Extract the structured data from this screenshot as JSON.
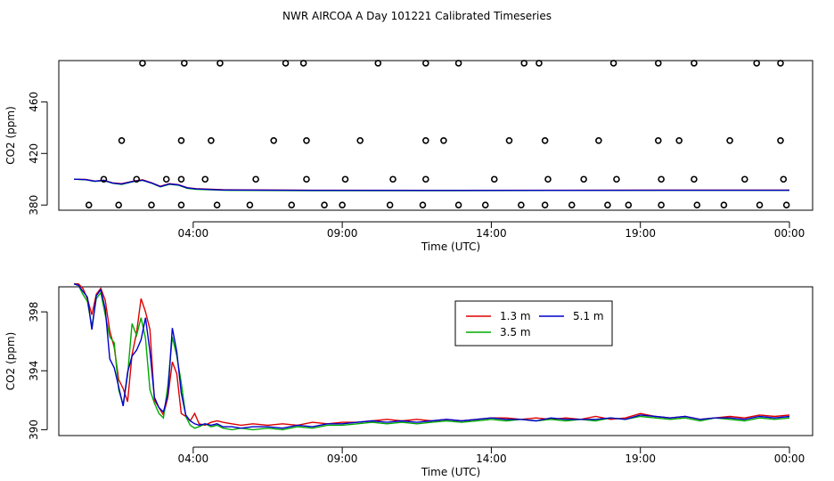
{
  "title": "NWR AIRCOA A  Day 101221  Calibrated Timeseries",
  "colors": {
    "s13": "#dd0000",
    "s35": "#00aa00",
    "s51": "#0000cc",
    "frame": "#000000"
  },
  "chart_data": [
    {
      "type": "scatter+line",
      "xlabel": "Time (UTC)",
      "ylabel": "CO2 (ppm)",
      "xlim": [
        0.0,
        24.0
      ],
      "ylim": [
        376,
        492
      ],
      "xticks": [
        {
          "v": 4,
          "label": "04:00"
        },
        {
          "v": 9,
          "label": "09:00"
        },
        {
          "v": 14,
          "label": "14:00"
        },
        {
          "v": 19,
          "label": "19:00"
        },
        {
          "v": 24,
          "label": "00:00"
        }
      ],
      "yticks": [
        {
          "v": 380,
          "label": "380"
        },
        {
          "v": 420,
          "label": "420"
        },
        {
          "v": 460,
          "label": "460"
        }
      ],
      "calibration_points": {
        "x": [
          0.5,
          1.5,
          2.6,
          3.6,
          4.8,
          5.9,
          7.3,
          8.4,
          9.0,
          10.6,
          11.7,
          12.9,
          13.8,
          15.0,
          15.8,
          16.7,
          17.9,
          18.6,
          19.7,
          20.9,
          21.8,
          23.0,
          23.9,
          1.0,
          2.1,
          3.1,
          3.6,
          4.4,
          6.1,
          7.8,
          9.1,
          10.7,
          11.8,
          14.1,
          15.9,
          17.1,
          18.2,
          19.7,
          20.8,
          22.5,
          23.8,
          1.6,
          3.6,
          4.6,
          6.7,
          7.8,
          9.6,
          11.8,
          12.4,
          14.6,
          15.8,
          17.6,
          19.6,
          20.3,
          22.0,
          23.7,
          2.3,
          3.7,
          4.9,
          7.1,
          7.7,
          10.2,
          11.8,
          12.9,
          15.1,
          15.6,
          18.1,
          19.6,
          20.8,
          22.9,
          23.7
        ],
        "y": [
          380,
          380,
          380,
          380,
          380,
          380,
          380,
          380,
          380,
          380,
          380,
          380,
          380,
          380,
          380,
          380,
          380,
          380,
          380,
          380,
          380,
          380,
          380,
          400,
          400,
          400,
          400,
          400,
          400,
          400,
          400,
          400,
          400,
          400,
          400,
          400,
          400,
          400,
          400,
          400,
          400,
          430,
          430,
          430,
          430,
          430,
          430,
          430,
          430,
          430,
          430,
          430,
          430,
          430,
          430,
          430,
          490,
          490,
          490,
          490,
          490,
          490,
          490,
          490,
          490,
          490,
          490,
          490,
          490,
          490,
          490
        ]
      },
      "series": [
        {
          "name": "1.3 m",
          "color": "#dd0000",
          "x": [
            0.0,
            0.4,
            0.7,
            1.0,
            1.3,
            1.6,
            2.0,
            2.3,
            2.6,
            2.9,
            3.2,
            3.5,
            3.8,
            4.1,
            5.0,
            8.0,
            12.0,
            16.0,
            20.0,
            24.0
          ],
          "y": [
            400,
            399.8,
            398.6,
            399.2,
            397.2,
            396.6,
            398.6,
            399.6,
            397.3,
            394.6,
            396.6,
            395.8,
            393.5,
            392.7,
            391.9,
            391.5,
            391.4,
            391.5,
            391.6,
            391.6
          ]
        },
        {
          "name": "3.5 m",
          "color": "#00aa00",
          "x": [
            0.0,
            0.4,
            0.7,
            1.0,
            1.3,
            1.6,
            2.0,
            2.3,
            2.6,
            2.9,
            3.2,
            3.5,
            3.8,
            4.1,
            5.0,
            8.0,
            12.0,
            16.0,
            20.0,
            24.0
          ],
          "y": [
            400,
            399.6,
            398.3,
            399.0,
            396.9,
            396.0,
            398.2,
            399.1,
            397.0,
            394.1,
            396.1,
            395.4,
            393.0,
            392.2,
            391.5,
            391.2,
            391.1,
            391.3,
            391.4,
            391.4
          ]
        },
        {
          "name": "5.1 m",
          "color": "#0000cc",
          "x": [
            0.0,
            0.4,
            0.7,
            1.0,
            1.3,
            1.6,
            2.0,
            2.3,
            2.6,
            2.9,
            3.2,
            3.5,
            3.8,
            4.1,
            5.0,
            8.0,
            12.0,
            16.0,
            20.0,
            24.0
          ],
          "y": [
            400,
            399.7,
            398.5,
            399.1,
            397.0,
            396.3,
            398.4,
            399.3,
            397.1,
            394.3,
            396.4,
            395.6,
            393.3,
            392.5,
            391.7,
            391.4,
            391.3,
            391.4,
            391.5,
            391.5
          ]
        }
      ]
    },
    {
      "type": "line",
      "xlabel": "Time (UTC)",
      "ylabel": "CO2 (ppm)",
      "xlim": [
        0.0,
        24.0
      ],
      "ylim": [
        389.6,
        399.7
      ],
      "xticks": [
        {
          "v": 4,
          "label": "04:00"
        },
        {
          "v": 9,
          "label": "09:00"
        },
        {
          "v": 14,
          "label": "14:00"
        },
        {
          "v": 19,
          "label": "19:00"
        },
        {
          "v": 24,
          "label": "00:00"
        }
      ],
      "yticks": [
        {
          "v": 390,
          "label": "390"
        },
        {
          "v": 394,
          "label": "394"
        },
        {
          "v": 398,
          "label": "398"
        }
      ],
      "legend": {
        "position": "top-center-right",
        "entries": [
          "1.3 m",
          "5.1 m",
          "3.5 m"
        ]
      },
      "series": [
        {
          "name": "1.3 m",
          "color": "#dd0000",
          "x": [
            0.0,
            0.15,
            0.3,
            0.45,
            0.6,
            0.75,
            0.9,
            1.05,
            1.2,
            1.35,
            1.5,
            1.65,
            1.8,
            1.95,
            2.1,
            2.25,
            2.4,
            2.55,
            2.7,
            2.85,
            3.0,
            3.15,
            3.3,
            3.45,
            3.6,
            3.75,
            3.9,
            4.05,
            4.2,
            4.4,
            4.6,
            4.8,
            5.0,
            5.3,
            5.6,
            6.0,
            6.5,
            7.0,
            7.5,
            8.0,
            8.5,
            9.0,
            9.5,
            10.0,
            10.5,
            11.0,
            11.5,
            12.0,
            12.5,
            13.0,
            13.5,
            14.0,
            14.5,
            15.0,
            15.5,
            16.0,
            16.5,
            17.0,
            17.5,
            18.0,
            18.5,
            19.0,
            19.5,
            20.0,
            20.5,
            21.0,
            21.5,
            22.0,
            22.5,
            23.0,
            23.5,
            24.0
          ],
          "y": [
            399.9,
            399.9,
            399.6,
            398.9,
            397.8,
            399.2,
            399.6,
            398.8,
            396.7,
            395.6,
            393.4,
            392.8,
            391.9,
            395.1,
            396.6,
            398.9,
            398.0,
            396.8,
            392.0,
            391.5,
            391.0,
            392.2,
            394.6,
            393.8,
            391.1,
            390.9,
            390.6,
            391.1,
            390.4,
            390.3,
            390.5,
            390.6,
            390.5,
            390.4,
            390.3,
            390.4,
            390.3,
            390.4,
            390.3,
            390.5,
            390.4,
            390.5,
            390.5,
            390.6,
            390.7,
            390.6,
            390.7,
            390.6,
            390.7,
            390.6,
            390.7,
            390.8,
            390.8,
            390.7,
            390.8,
            390.7,
            390.8,
            390.7,
            390.9,
            390.7,
            390.8,
            391.1,
            390.9,
            390.8,
            390.9,
            390.7,
            390.8,
            390.9,
            390.8,
            391.0,
            390.9,
            391.0
          ]
        },
        {
          "name": "3.5 m",
          "color": "#00aa00",
          "x": [
            0.0,
            0.15,
            0.3,
            0.45,
            0.6,
            0.75,
            0.9,
            1.05,
            1.2,
            1.35,
            1.5,
            1.65,
            1.8,
            1.95,
            2.1,
            2.25,
            2.4,
            2.55,
            2.7,
            2.85,
            3.0,
            3.15,
            3.3,
            3.45,
            3.6,
            3.75,
            3.9,
            4.05,
            4.2,
            4.4,
            4.6,
            4.8,
            5.0,
            5.3,
            5.6,
            6.0,
            6.5,
            7.0,
            7.5,
            8.0,
            8.5,
            9.0,
            9.5,
            10.0,
            10.5,
            11.0,
            11.5,
            12.0,
            12.5,
            13.0,
            13.5,
            14.0,
            14.5,
            15.0,
            15.5,
            16.0,
            16.5,
            17.0,
            17.5,
            18.0,
            18.5,
            19.0,
            19.5,
            20.0,
            20.5,
            21.0,
            21.5,
            22.0,
            22.5,
            23.0,
            23.5,
            24.0
          ],
          "y": [
            399.9,
            399.8,
            399.2,
            398.7,
            397.0,
            398.9,
            399.3,
            397.8,
            396.3,
            395.9,
            392.7,
            391.7,
            393.7,
            397.2,
            396.4,
            397.6,
            396.2,
            392.7,
            391.8,
            391.1,
            390.8,
            393.0,
            396.3,
            395.0,
            393.2,
            390.9,
            390.3,
            390.1,
            390.2,
            390.4,
            390.2,
            390.3,
            390.1,
            390.0,
            390.1,
            390.0,
            390.1,
            390.0,
            390.2,
            390.1,
            390.3,
            390.3,
            390.4,
            390.5,
            390.4,
            390.5,
            390.4,
            390.5,
            390.6,
            390.5,
            390.6,
            390.7,
            390.6,
            390.7,
            390.6,
            390.7,
            390.6,
            390.7,
            390.6,
            390.8,
            390.7,
            390.9,
            390.8,
            390.7,
            390.8,
            390.6,
            390.8,
            390.7,
            390.6,
            390.8,
            390.7,
            390.8
          ]
        },
        {
          "name": "5.1 m",
          "color": "#0000cc",
          "x": [
            0.0,
            0.15,
            0.3,
            0.45,
            0.6,
            0.75,
            0.9,
            1.05,
            1.2,
            1.35,
            1.5,
            1.65,
            1.8,
            1.95,
            2.1,
            2.25,
            2.4,
            2.55,
            2.7,
            2.85,
            3.0,
            3.15,
            3.3,
            3.45,
            3.6,
            3.75,
            3.9,
            4.05,
            4.2,
            4.4,
            4.6,
            4.8,
            5.0,
            5.3,
            5.6,
            6.0,
            6.5,
            7.0,
            7.5,
            8.0,
            8.5,
            9.0,
            9.5,
            10.0,
            10.5,
            11.0,
            11.5,
            12.0,
            12.5,
            13.0,
            13.5,
            14.0,
            14.5,
            15.0,
            15.5,
            16.0,
            16.5,
            17.0,
            17.5,
            18.0,
            18.5,
            19.0,
            19.5,
            20.0,
            20.5,
            21.0,
            21.5,
            22.0,
            22.5,
            23.0,
            23.5,
            24.0
          ],
          "y": [
            399.9,
            399.8,
            399.4,
            399.0,
            396.8,
            399.1,
            399.5,
            398.2,
            394.8,
            394.2,
            392.9,
            391.6,
            393.9,
            395.0,
            395.4,
            396.1,
            397.6,
            395.3,
            392.2,
            391.5,
            391.2,
            392.4,
            396.9,
            395.3,
            392.5,
            391.0,
            390.6,
            390.4,
            390.3,
            390.4,
            390.3,
            390.4,
            390.2,
            390.2,
            390.1,
            390.2,
            390.2,
            390.1,
            390.3,
            390.2,
            390.4,
            390.4,
            390.5,
            390.6,
            390.5,
            390.6,
            390.5,
            390.6,
            390.7,
            390.6,
            390.7,
            390.8,
            390.7,
            390.7,
            390.6,
            390.8,
            390.7,
            390.7,
            390.7,
            390.8,
            390.7,
            391.0,
            390.9,
            390.8,
            390.9,
            390.7,
            390.8,
            390.8,
            390.7,
            390.9,
            390.8,
            390.9
          ]
        }
      ]
    }
  ]
}
